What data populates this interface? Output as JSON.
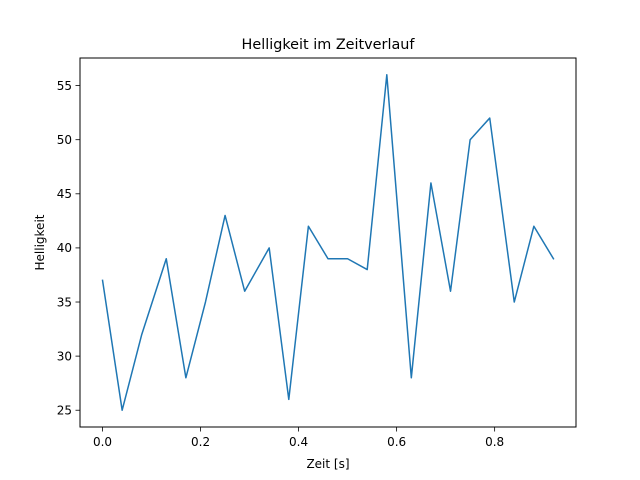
{
  "chart_data": {
    "type": "line",
    "title": "Helligkeit im Zeitverlauf",
    "xlabel": "Zeit [s]",
    "ylabel": "Helligkeit",
    "xlim": [
      -0.046,
      0.966
    ],
    "ylim": [
      23.45,
      57.55
    ],
    "xticks": [
      0.0,
      0.2,
      0.4,
      0.6,
      0.8
    ],
    "xtick_labels": [
      "0.0",
      "0.2",
      "0.4",
      "0.6",
      "0.8"
    ],
    "yticks": [
      25,
      30,
      35,
      40,
      45,
      50,
      55
    ],
    "ytick_labels": [
      "25",
      "30",
      "35",
      "40",
      "45",
      "50",
      "55"
    ],
    "grid": false,
    "series": [
      {
        "color": "#1f77b4",
        "x": [
          0.0,
          0.04,
          0.08,
          0.13,
          0.17,
          0.21,
          0.25,
          0.29,
          0.34,
          0.38,
          0.42,
          0.46,
          0.5,
          0.54,
          0.58,
          0.63,
          0.67,
          0.71,
          0.75,
          0.79,
          0.84,
          0.88,
          0.92
        ],
        "y": [
          37,
          25,
          32,
          39,
          28,
          35,
          43,
          36,
          40,
          26,
          42,
          39,
          39,
          38,
          56,
          28,
          46,
          36,
          50,
          52,
          35,
          42,
          39
        ]
      }
    ]
  }
}
